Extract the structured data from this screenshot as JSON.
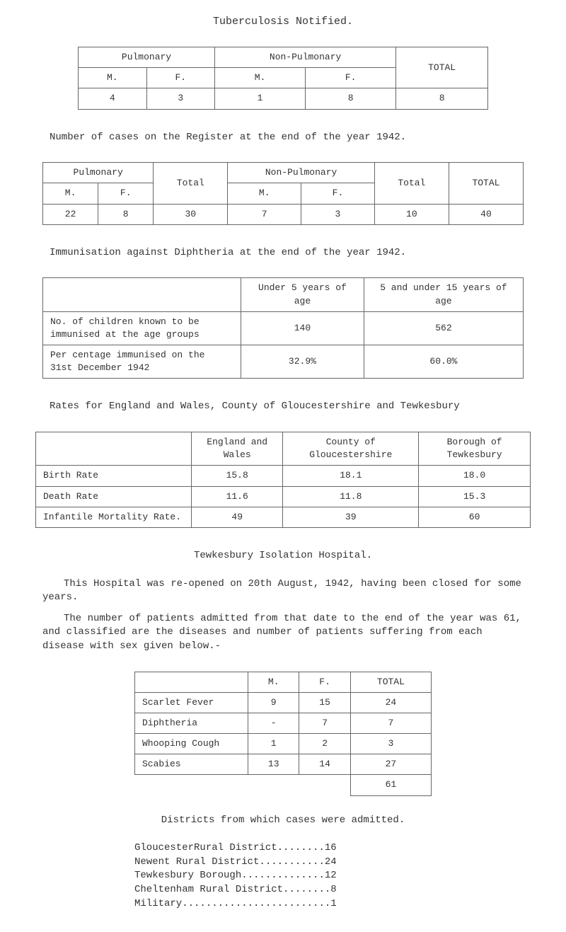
{
  "page_title": "Tuberculosis Notified.",
  "table1": {
    "headers": {
      "pulmonary": "Pulmonary",
      "nonpulmonary": "Non-Pulmonary",
      "total": "TOTAL",
      "m1": "M.",
      "f1": "F.",
      "m2": "M.",
      "f2": "F."
    },
    "row": {
      "c1": "4",
      "c2": "3",
      "c3": "1",
      "c4": "8",
      "c5": "8"
    }
  },
  "para1": "Number of cases on the Register at the end of the year 1942.",
  "table2": {
    "headers": {
      "pulmonary": "Pulmonary",
      "total1": "Total",
      "nonpulmonary": "Non-Pulmonary",
      "total2": "Total",
      "total3": "TOTAL",
      "m1": "M.",
      "f1": "F.",
      "m2": "M.",
      "f2": "F."
    },
    "row": {
      "c1": "22",
      "c2": "8",
      "c3": "30",
      "c4": "7",
      "c5": "3",
      "c6": "10",
      "c7": "40"
    }
  },
  "para2": "Immunisation against Diphtheria at the end of the year 1942.",
  "table3": {
    "headers": {
      "c1": "",
      "c2": "Under 5 years of age",
      "c3": "5 and under 15 years of age"
    },
    "row1": {
      "c1": "No. of children known to be immunised at the age groups",
      "c2": "140",
      "c3": "562"
    },
    "row2": {
      "c1": "Per centage immunised on the 31st December 1942",
      "c2": "32.9%",
      "c3": "60.0%"
    }
  },
  "para3": "Rates for England and Wales, County of Gloucestershire and Tewkesbury",
  "table4": {
    "headers": {
      "c1": "",
      "c2": "England and Wales",
      "c3": "County of Gloucestershire",
      "c4": "Borough of Tewkesbury"
    },
    "row1": {
      "c1": "Birth Rate",
      "c2": "15.8",
      "c3": "18.1",
      "c4": "18.0"
    },
    "row2": {
      "c1": "Death Rate",
      "c2": "11.6",
      "c3": "11.8",
      "c4": "15.3"
    },
    "row3": {
      "c1": "Infantile Mortality Rate.",
      "c2": "49",
      "c3": "39",
      "c4": "60"
    }
  },
  "section_title": "Tewkesbury Isolation Hospital.",
  "para4": "This Hospital was re-opened on 20th August, 1942, having been closed for some years.",
  "para5": "The number of patients admitted from that date to the end of the year was 61, and classified are the diseases and number of patients suffering from each disease with sex given below.-",
  "table5": {
    "headers": {
      "c1": "",
      "c2": "M.",
      "c3": "F.",
      "c4": "TOTAL"
    },
    "row1": {
      "c1": "Scarlet Fever",
      "c2": "9",
      "c3": "15",
      "c4": "24"
    },
    "row2": {
      "c1": "Diphtheria",
      "c2": "-",
      "c3": "7",
      "c4": "7"
    },
    "row3": {
      "c1": "Whooping Cough",
      "c2": "1",
      "c3": "2",
      "c4": "3"
    },
    "row4": {
      "c1": "Scabies",
      "c2": "13",
      "c3": "14",
      "c4": "27"
    },
    "row5": {
      "c1": "",
      "c2": "",
      "c3": "",
      "c4": "61"
    }
  },
  "para6": "Districts from which cases were admitted.",
  "districts": {
    "d1": "GloucesterRural District........16",
    "d2": "Newent Rural District...........24",
    "d3": "Tewkesbury Borough..............12",
    "d4": "Cheltenham Rural District........8",
    "d5": "Military.........................1"
  }
}
